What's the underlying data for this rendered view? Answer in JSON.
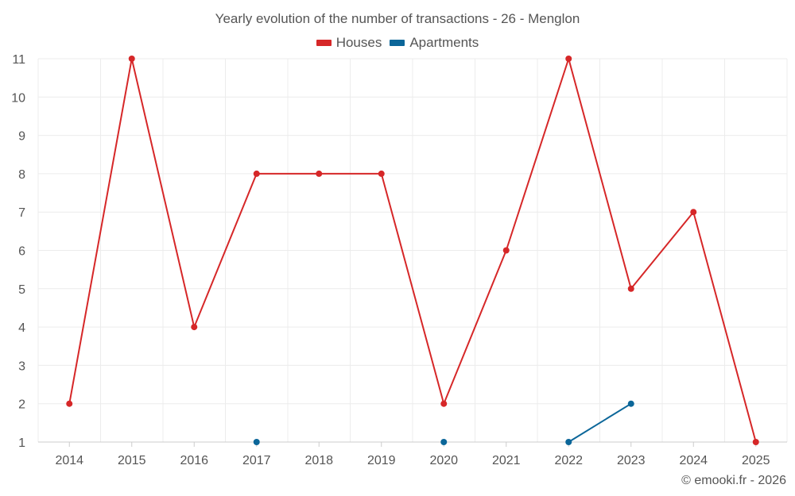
{
  "chart_data": {
    "type": "line",
    "title": "Yearly evolution of the number of transactions - 26 - Menglon",
    "categories": [
      "2014",
      "2015",
      "2016",
      "2017",
      "2018",
      "2019",
      "2020",
      "2021",
      "2022",
      "2023",
      "2024",
      "2025"
    ],
    "yticks": [
      1,
      2,
      3,
      4,
      5,
      6,
      7,
      8,
      9,
      10,
      11
    ],
    "ylim": [
      1,
      11
    ],
    "grid": true,
    "legend_position": "top-center",
    "series": [
      {
        "name": "Houses",
        "color": "#d62728",
        "values": [
          2,
          11,
          4,
          8,
          8,
          8,
          2,
          6,
          11,
          5,
          7,
          1
        ]
      },
      {
        "name": "Apartments",
        "color": "#0b6699",
        "values": [
          null,
          null,
          null,
          1,
          null,
          null,
          1,
          null,
          1,
          2,
          null,
          null
        ]
      }
    ]
  },
  "credit": "© emooki.fr - 2026"
}
